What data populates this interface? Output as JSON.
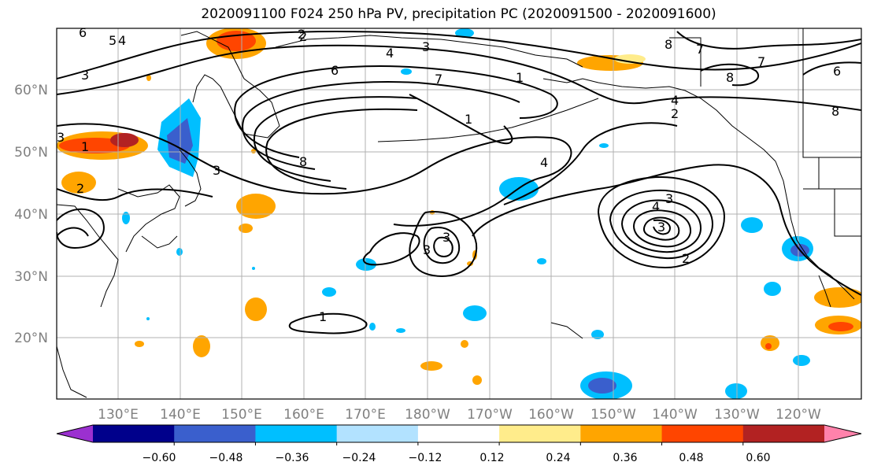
{
  "title": "2020091100 F024 250 hPa PV, precipitation PC (2020091500 - 2020091600)",
  "map": {
    "lat_labels": [
      "60°N",
      "50°N",
      "40°N",
      "30°N",
      "20°N"
    ],
    "lon_labels": [
      "130°E",
      "140°E",
      "150°E",
      "160°E",
      "170°E",
      "180°W",
      "170°W",
      "160°W",
      "150°W",
      "140°W",
      "130°W",
      "120°W"
    ],
    "label_color": "#808080",
    "contour_labels": [
      "6",
      "5",
      "4",
      "3",
      "2",
      "4",
      "3",
      "7",
      "6",
      "1",
      "8",
      "8",
      "7",
      "7",
      "8",
      "6",
      "4",
      "2",
      "8",
      "3",
      "1",
      "3",
      "1",
      "4",
      "2",
      "4",
      "3",
      "2",
      "3",
      "3",
      "2",
      "1",
      "3"
    ]
  },
  "colorbar": {
    "colors": [
      "#9b30d0",
      "#00008b",
      "#3a5fcd",
      "#00bfff",
      "#b2e2ff",
      "#ffffff",
      "#ffec8b",
      "#ffa500",
      "#ff4500",
      "#b22222",
      "#ff82ab"
    ],
    "tick_labels": [
      "−0.60",
      "−0.48",
      "−0.36",
      "−0.24",
      "−0.12",
      "0.12",
      "0.24",
      "0.36",
      "0.48",
      "0.60"
    ]
  }
}
